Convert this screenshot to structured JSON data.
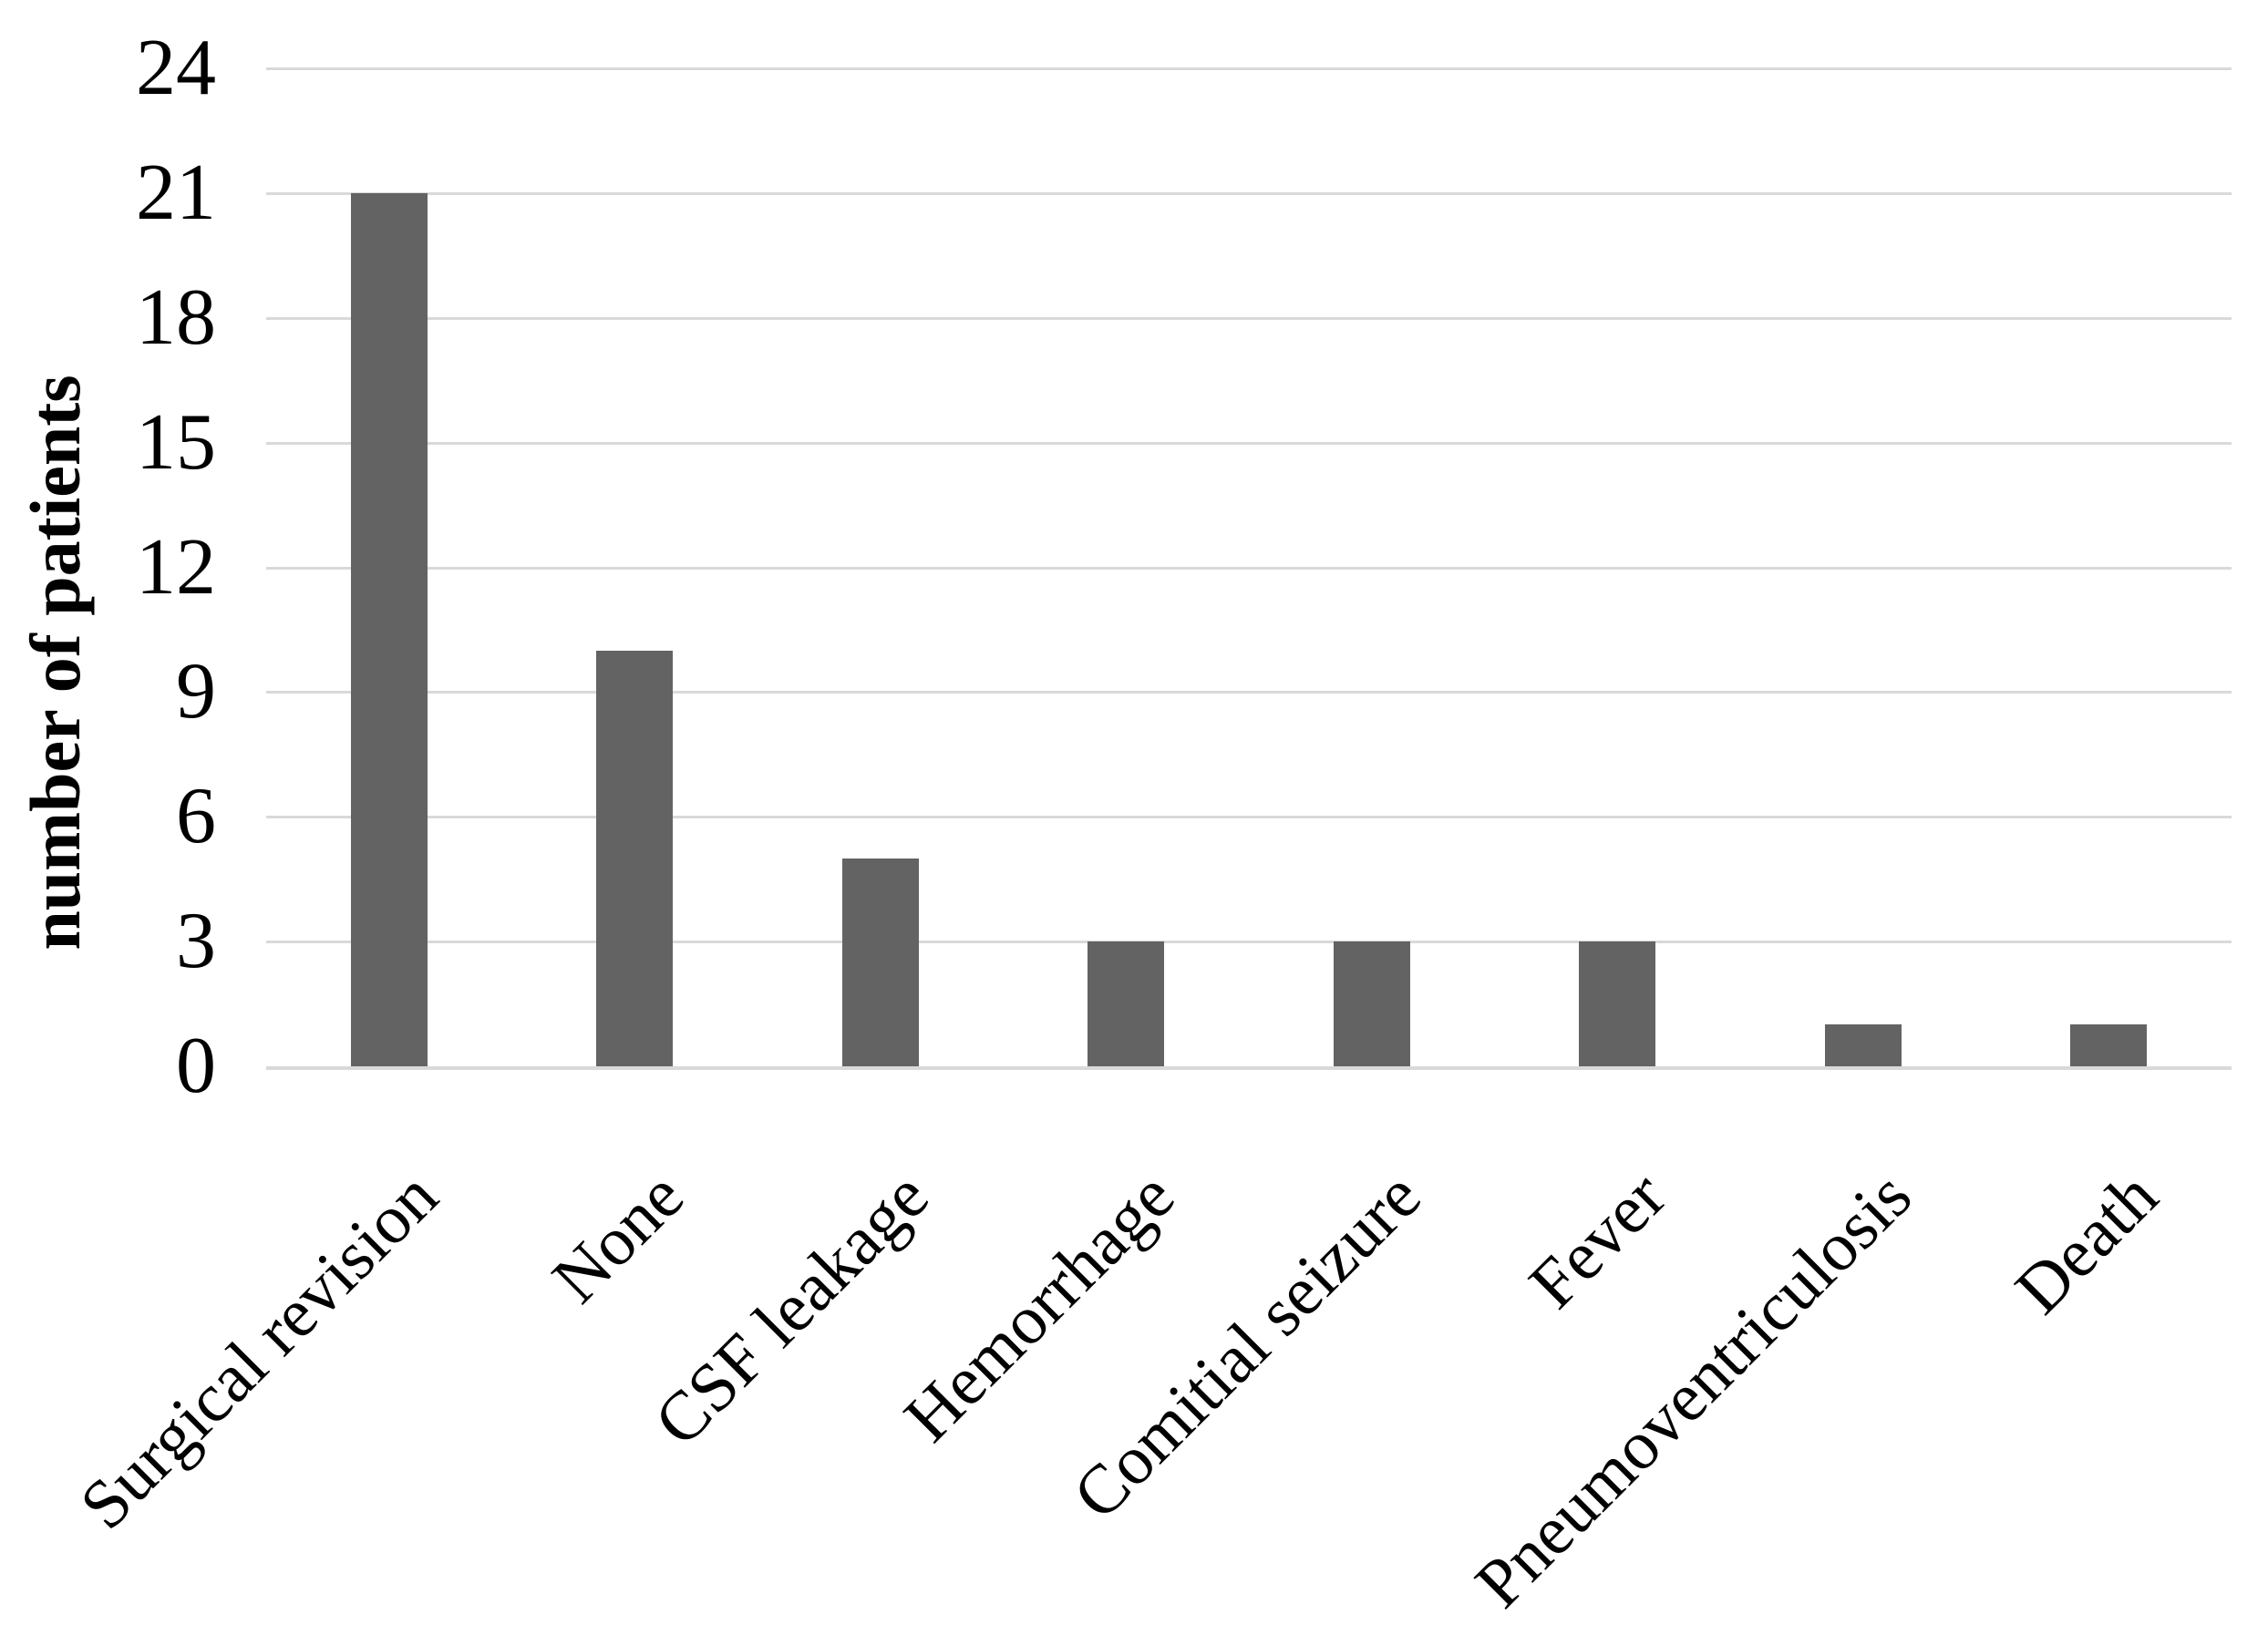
{
  "chart_data": {
    "type": "bar",
    "title": "",
    "xlabel": "",
    "ylabel": "number of patients",
    "categories": [
      "Surgical revision",
      "None",
      "CSF leakage",
      "Hemorrhage",
      "Comitial seizure",
      "Fever",
      "Pneumoventriculosis",
      "Death"
    ],
    "values": [
      21,
      10,
      5,
      3,
      3,
      3,
      1,
      1
    ],
    "ylim": [
      0,
      24
    ],
    "ytick_step": 3,
    "yticks": [
      0,
      3,
      6,
      9,
      12,
      15,
      18,
      21,
      24
    ],
    "grid": "horizontal-only",
    "legend_position": "none",
    "bar_color": "#636363",
    "gridline_color": "#d9d9d9",
    "axis_line_color": "#d9d9d9",
    "text_color": "#000000",
    "background_color": "#ffffff"
  }
}
